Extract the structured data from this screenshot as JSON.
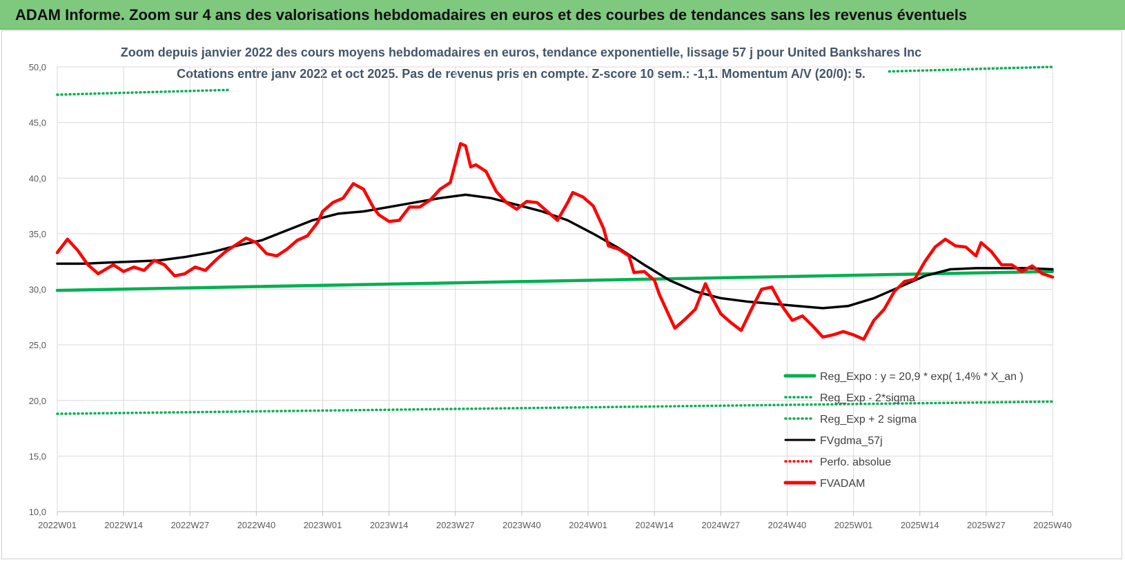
{
  "header": {
    "banner_title": "ADAM Informe. Zoom sur 4 ans des valorisations hebdomadaires en euros et des courbes de tendances sans les revenus éventuels"
  },
  "chart_data": {
    "type": "line",
    "title_line1": "Zoom depuis janvier 2022 des cours moyens hebdomadaires en euros, tendance exponentielle, lissage 57 j pour United Bankshares Inc",
    "title_line2": "Cotations entre janv 2022 et oct 2025. Pas de revenus pris en compte. Z-score 10 sem.: -1,1. Momentum A/V (20/0): 5.",
    "xlabel": "",
    "ylabel": "",
    "ylim": [
      10,
      50
    ],
    "y_ticks": [
      "10,0",
      "15,0",
      "20,0",
      "25,0",
      "30,0",
      "35,0",
      "40,0",
      "45,0",
      "50,0"
    ],
    "x_ticks": [
      "2022W01",
      "2022W14",
      "2022W27",
      "2022W40",
      "2023W01",
      "2023W14",
      "2023W27",
      "2023W40",
      "2024W01",
      "2024W14",
      "2024W27",
      "2024W40",
      "2025W01",
      "2025W14",
      "2025W27",
      "2025W40"
    ],
    "n_weeks": 196,
    "grid": true,
    "legend_position": "bottom-right",
    "legend": [
      {
        "label": "Reg_Expo : y = 20,9 * exp( 1,4% * X_an )",
        "color": "#00b050",
        "style": "solid-thick"
      },
      {
        "label": "Reg_Exp - 2*sigma",
        "color": "#00b050",
        "style": "dotted"
      },
      {
        "label": "Reg_Exp + 2 sigma",
        "color": "#00b050",
        "style": "dotted"
      },
      {
        "label": "FVgdma_57j",
        "color": "#000000",
        "style": "solid"
      },
      {
        "label": "Perfo. absolue",
        "color": "#ff0000",
        "style": "dotted"
      },
      {
        "label": "FVADAM",
        "color": "#ff0000",
        "style": "solid-thick"
      }
    ],
    "series": [
      {
        "name": "FVADAM",
        "color": "#ff0000",
        "points": [
          [
            0,
            33.3
          ],
          [
            2,
            34.5
          ],
          [
            4,
            33.5
          ],
          [
            6,
            32.2
          ],
          [
            8,
            31.4
          ],
          [
            11,
            32.2
          ],
          [
            13,
            31.6
          ],
          [
            15,
            32.0
          ],
          [
            17,
            31.7
          ],
          [
            19,
            32.6
          ],
          [
            21,
            32.2
          ],
          [
            23,
            31.2
          ],
          [
            25,
            31.4
          ],
          [
            27,
            32.0
          ],
          [
            29,
            31.7
          ],
          [
            31,
            32.6
          ],
          [
            33,
            33.4
          ],
          [
            35,
            34.0
          ],
          [
            37,
            34.6
          ],
          [
            39,
            34.2
          ],
          [
            41,
            33.2
          ],
          [
            43,
            33.0
          ],
          [
            45,
            33.6
          ],
          [
            47,
            34.4
          ],
          [
            49,
            34.8
          ],
          [
            51,
            36.0
          ],
          [
            52,
            37.0
          ],
          [
            54,
            37.8
          ],
          [
            56,
            38.2
          ],
          [
            58,
            39.5
          ],
          [
            60,
            39.0
          ],
          [
            62,
            37.3
          ],
          [
            63,
            36.7
          ],
          [
            65,
            36.1
          ],
          [
            67,
            36.2
          ],
          [
            69,
            37.4
          ],
          [
            71,
            37.4
          ],
          [
            73,
            38.0
          ],
          [
            75,
            39.0
          ],
          [
            77,
            39.6
          ],
          [
            79,
            43.1
          ],
          [
            80,
            42.9
          ],
          [
            81,
            41.0
          ],
          [
            82,
            41.2
          ],
          [
            84,
            40.6
          ],
          [
            86,
            38.8
          ],
          [
            88,
            37.8
          ],
          [
            90,
            37.2
          ],
          [
            92,
            37.9
          ],
          [
            94,
            37.8
          ],
          [
            96,
            37.0
          ],
          [
            98,
            36.2
          ],
          [
            100,
            37.8
          ],
          [
            101,
            38.7
          ],
          [
            103,
            38.3
          ],
          [
            105,
            37.5
          ],
          [
            107,
            35.5
          ],
          [
            108,
            33.9
          ],
          [
            110,
            33.6
          ],
          [
            112,
            33.0
          ],
          [
            113,
            31.5
          ],
          [
            115,
            31.6
          ],
          [
            117,
            30.8
          ],
          [
            118,
            29.5
          ],
          [
            120,
            27.5
          ],
          [
            121,
            26.5
          ],
          [
            123,
            27.3
          ],
          [
            125,
            28.2
          ],
          [
            127,
            30.5
          ],
          [
            128,
            29.5
          ],
          [
            130,
            27.8
          ],
          [
            132,
            27.0
          ],
          [
            134,
            26.3
          ],
          [
            136,
            28.2
          ],
          [
            138,
            30.0
          ],
          [
            140,
            30.2
          ],
          [
            142,
            28.5
          ],
          [
            144,
            27.2
          ],
          [
            146,
            27.6
          ],
          [
            148,
            26.7
          ],
          [
            150,
            25.7
          ],
          [
            152,
            25.9
          ],
          [
            154,
            26.2
          ],
          [
            156,
            25.9
          ],
          [
            158,
            25.5
          ],
          [
            160,
            27.2
          ],
          [
            162,
            28.2
          ],
          [
            164,
            29.8
          ],
          [
            166,
            30.7
          ],
          [
            168,
            30.9
          ],
          [
            170,
            32.5
          ],
          [
            172,
            33.8
          ],
          [
            174,
            34.5
          ],
          [
            176,
            33.9
          ],
          [
            178,
            33.8
          ],
          [
            180,
            33.0
          ],
          [
            181,
            34.2
          ],
          [
            183,
            33.4
          ],
          [
            185,
            32.2
          ],
          [
            187,
            32.2
          ],
          [
            189,
            31.6
          ],
          [
            191,
            32.1
          ],
          [
            193,
            31.4
          ],
          [
            195,
            31.1
          ]
        ]
      },
      {
        "name": "FVgdma_57j",
        "color": "#000000",
        "points": [
          [
            0,
            32.3
          ],
          [
            5,
            32.3
          ],
          [
            10,
            32.4
          ],
          [
            15,
            32.5
          ],
          [
            20,
            32.6
          ],
          [
            25,
            32.9
          ],
          [
            30,
            33.3
          ],
          [
            35,
            33.9
          ],
          [
            40,
            34.4
          ],
          [
            45,
            35.3
          ],
          [
            50,
            36.2
          ],
          [
            55,
            36.8
          ],
          [
            60,
            37.0
          ],
          [
            65,
            37.4
          ],
          [
            70,
            37.8
          ],
          [
            75,
            38.2
          ],
          [
            80,
            38.5
          ],
          [
            85,
            38.2
          ],
          [
            90,
            37.6
          ],
          [
            95,
            37.0
          ],
          [
            100,
            36.2
          ],
          [
            105,
            35.0
          ],
          [
            110,
            33.7
          ],
          [
            115,
            32.2
          ],
          [
            120,
            30.8
          ],
          [
            125,
            29.8
          ],
          [
            130,
            29.2
          ],
          [
            135,
            28.9
          ],
          [
            140,
            28.7
          ],
          [
            145,
            28.5
          ],
          [
            150,
            28.3
          ],
          [
            155,
            28.5
          ],
          [
            160,
            29.2
          ],
          [
            165,
            30.2
          ],
          [
            170,
            31.2
          ],
          [
            175,
            31.8
          ],
          [
            180,
            31.9
          ],
          [
            185,
            31.9
          ],
          [
            190,
            31.9
          ],
          [
            195,
            31.8
          ]
        ]
      },
      {
        "name": "Reg_Expo : y = 20,9 * exp( 1,4% * X_an )",
        "color": "#00b050",
        "points": [
          [
            0,
            29.9
          ],
          [
            195,
            31.6
          ]
        ]
      },
      {
        "name": "Reg_Exp - 2*sigma",
        "color": "#00b050",
        "points": [
          [
            0,
            18.8
          ],
          [
            195,
            19.9
          ]
        ]
      },
      {
        "name": "Reg_Exp + 2 sigma",
        "color": "#00b050",
        "points": [
          [
            0,
            47.5
          ],
          [
            195,
            50.0
          ]
        ]
      }
    ]
  }
}
